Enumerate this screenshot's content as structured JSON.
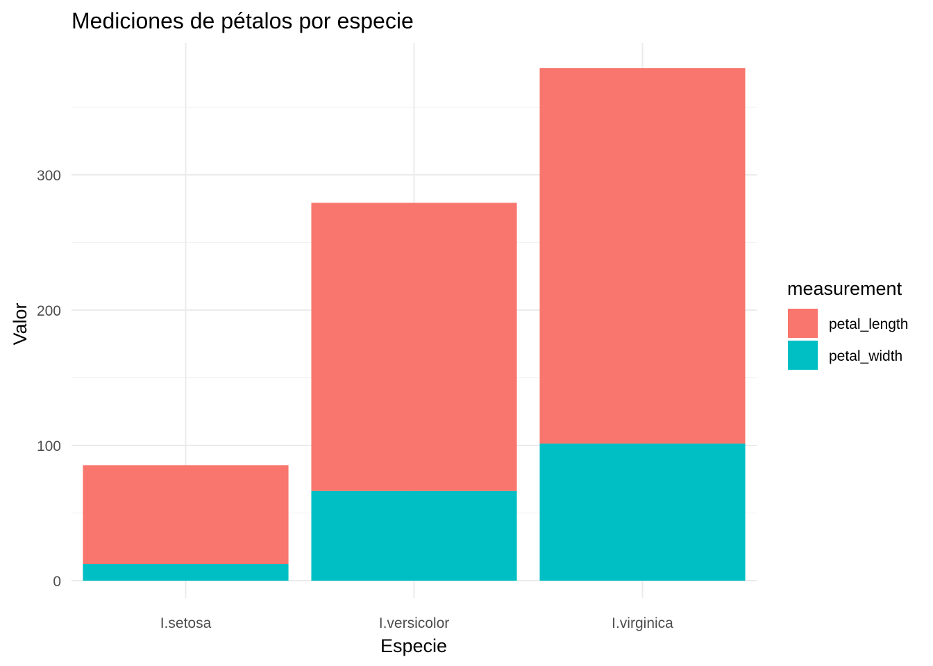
{
  "chart_data": {
    "type": "bar",
    "stacked": true,
    "title": "Mediciones de pétalos por especie",
    "xlabel": "Especie",
    "ylabel": "Valor",
    "categories": [
      "I.setosa",
      "I.versicolor",
      "I.virginica"
    ],
    "series": [
      {
        "name": "petal_length",
        "values": [
          73.1,
          213.0,
          277.6
        ],
        "color": "#F8766D"
      },
      {
        "name": "petal_width",
        "values": [
          12.3,
          66.3,
          101.3
        ],
        "color": "#00BFC4"
      }
    ],
    "stack_order_bottom_to_top": [
      "petal_width",
      "petal_length"
    ],
    "ylim": [
      0,
      395
    ],
    "y_ticks": [
      0,
      100,
      200,
      300
    ],
    "grid": true,
    "legend": {
      "title": "measurement",
      "placement": "right"
    }
  }
}
